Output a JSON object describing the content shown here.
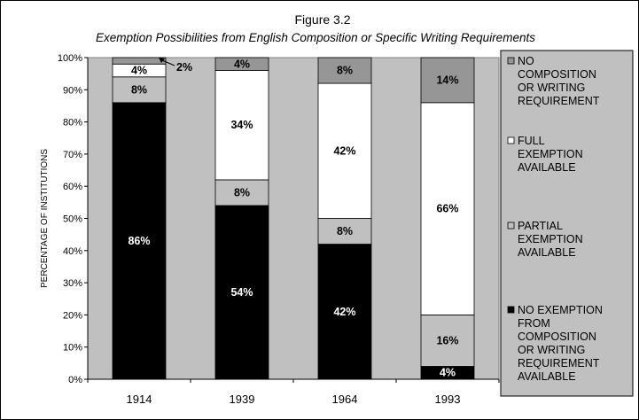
{
  "chart_data": {
    "type": "bar",
    "stacked": true,
    "title": "Figure 3.2",
    "subtitle": "Exemption Possibilities from English Composition or Specific Writing Requirements",
    "ylabel": "PERCENTAGE OF INSTITUTIONS",
    "xlabel": "",
    "ylim": [
      0,
      100
    ],
    "yticks": [
      "0%",
      "10%",
      "20%",
      "30%",
      "40%",
      "50%",
      "60%",
      "70%",
      "80%",
      "90%",
      "100%"
    ],
    "categories": [
      "1914",
      "1939",
      "1964",
      "1993"
    ],
    "grid": false,
    "legend_position": "right",
    "series": [
      {
        "name": "NO EXEMPTION FROM COMPOSITION OR WRITING REQUIREMENT AVAILABLE",
        "color": "#000000",
        "label_color": "#ffffff",
        "values": [
          86,
          54,
          42,
          4
        ],
        "labels": [
          "86%",
          "54%",
          "42%",
          "4%"
        ]
      },
      {
        "name": "PARTIAL EXEMPTION AVAILABLE",
        "color": "#c0c0c0",
        "label_color": "#000000",
        "values": [
          8,
          8,
          8,
          16
        ],
        "labels": [
          "8%",
          "8%",
          "8%",
          "16%"
        ]
      },
      {
        "name": "FULL EXEMPTION AVAILABLE",
        "color": "#ffffff",
        "label_color": "#000000",
        "values": [
          4,
          34,
          42,
          66
        ],
        "labels": [
          "4%",
          "34%",
          "42%",
          "66%"
        ]
      },
      {
        "name": "NO COMPOSITION OR WRITING REQUIREMENT",
        "color": "#969696",
        "label_color": "#000000",
        "values": [
          2,
          4,
          8,
          14
        ],
        "labels": [
          "2%",
          "4%",
          "8%",
          "14%"
        ]
      }
    ],
    "legend": [
      {
        "lines": [
          "NO",
          "COMPOSITION",
          "OR WRITING",
          "REQUIREMENT"
        ]
      },
      {
        "lines": [
          "FULL",
          "EXEMPTION",
          "AVAILABLE"
        ]
      },
      {
        "lines": [
          "PARTIAL",
          "EXEMPTION",
          "AVAILABLE"
        ]
      },
      {
        "lines": [
          "NO EXEMPTION",
          "FROM",
          "COMPOSITION",
          "OR WRITING",
          "REQUIREMENT",
          "AVAILABLE"
        ]
      }
    ],
    "colors": {
      "plot_background": "#c0c0c0",
      "legend_background": "#c0c0c0"
    }
  }
}
